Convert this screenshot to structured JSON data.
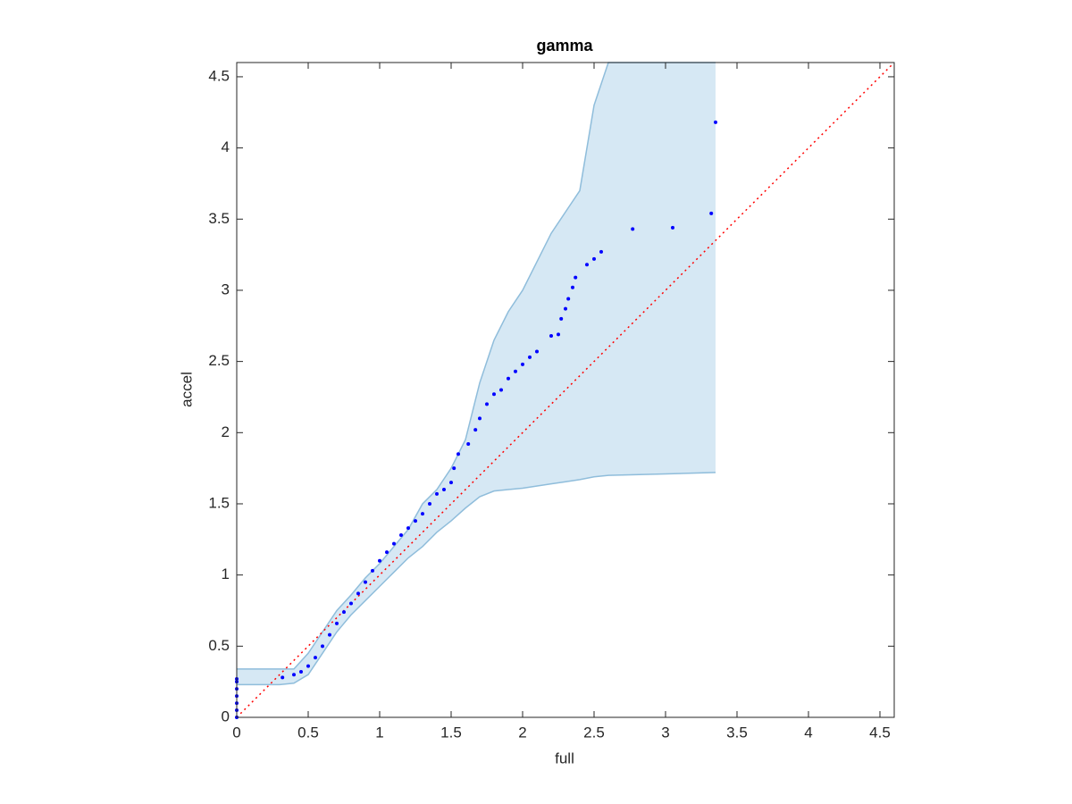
{
  "chart_data": {
    "type": "scatter",
    "title": "gamma",
    "x_label": "full",
    "y_label": "accel",
    "xlim": [
      0,
      4.6
    ],
    "ylim": [
      0,
      4.6
    ],
    "xticks": [
      0,
      0.5,
      1,
      1.5,
      2,
      2.5,
      3,
      3.5,
      4,
      4.5
    ],
    "yticks": [
      0,
      0.5,
      1,
      1.5,
      2,
      2.5,
      3,
      3.5,
      4,
      4.5
    ],
    "reference_line_color": "#ff0000",
    "band": {
      "color": "#d6e8f4",
      "edge_color": "#8fbddb",
      "x": [
        0,
        0.3,
        0.4,
        0.5,
        0.6,
        0.7,
        0.8,
        0.9,
        1.0,
        1.1,
        1.2,
        1.3,
        1.4,
        1.5,
        1.6,
        1.7,
        1.8,
        1.9,
        2.0,
        2.2,
        2.4,
        2.5,
        2.6,
        3.0,
        3.35
      ],
      "upper": [
        0.34,
        0.34,
        0.34,
        0.45,
        0.6,
        0.75,
        0.86,
        0.98,
        1.08,
        1.2,
        1.32,
        1.5,
        1.6,
        1.75,
        1.95,
        2.35,
        2.65,
        2.85,
        3.0,
        3.4,
        3.7,
        4.3,
        4.6,
        4.6,
        4.6
      ],
      "lower": [
        0.23,
        0.23,
        0.24,
        0.3,
        0.45,
        0.6,
        0.72,
        0.82,
        0.92,
        1.02,
        1.12,
        1.2,
        1.3,
        1.38,
        1.47,
        1.55,
        1.59,
        1.6,
        1.61,
        1.64,
        1.67,
        1.69,
        1.7,
        1.71,
        1.72
      ]
    },
    "points": {
      "color": "#0000ff",
      "x": [
        0,
        0,
        0,
        0,
        0,
        0,
        0,
        0.32,
        0.4,
        0.45,
        0.5,
        0.55,
        0.6,
        0.65,
        0.7,
        0.75,
        0.8,
        0.85,
        0.9,
        0.95,
        1.0,
        1.05,
        1.1,
        1.15,
        1.2,
        1.25,
        1.3,
        1.35,
        1.4,
        1.45,
        1.5,
        1.52,
        1.55,
        1.62,
        1.67,
        1.7,
        1.75,
        1.8,
        1.85,
        1.9,
        1.95,
        2.0,
        2.05,
        2.1,
        2.2,
        2.25,
        2.27,
        2.3,
        2.32,
        2.35,
        2.37,
        2.45,
        2.5,
        2.55,
        2.77,
        3.05,
        3.32,
        3.35
      ],
      "y": [
        0,
        0.05,
        0.1,
        0.15,
        0.2,
        0.25,
        0.27,
        0.28,
        0.3,
        0.32,
        0.36,
        0.42,
        0.5,
        0.58,
        0.66,
        0.74,
        0.8,
        0.87,
        0.95,
        1.03,
        1.1,
        1.16,
        1.22,
        1.28,
        1.33,
        1.38,
        1.43,
        1.5,
        1.57,
        1.6,
        1.65,
        1.75,
        1.85,
        1.92,
        2.02,
        2.1,
        2.2,
        2.27,
        2.3,
        2.38,
        2.43,
        2.48,
        2.53,
        2.57,
        2.68,
        2.69,
        2.8,
        2.87,
        2.94,
        3.02,
        3.09,
        3.18,
        3.22,
        3.27,
        3.43,
        3.44,
        3.54,
        4.18
      ]
    }
  }
}
